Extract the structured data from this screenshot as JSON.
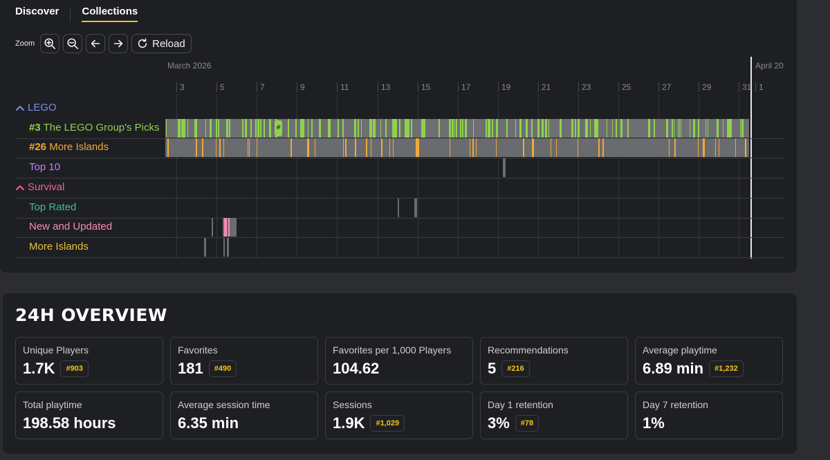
{
  "tabs": [
    {
      "label": "Discover",
      "active": false
    },
    {
      "label": "Collections",
      "active": true
    }
  ],
  "toolbar": {
    "zoom_label": "Zoom",
    "zoom_in_icon": "zoom-in-icon",
    "zoom_out_icon": "zoom-out-icon",
    "back_icon": "arrow-left-icon",
    "forward_icon": "arrow-right-icon",
    "reload_icon": "refresh-icon",
    "reload_label": "Reload"
  },
  "timeline": {
    "months": [
      "March 2026",
      "April 20"
    ],
    "days": [
      "3",
      "5",
      "7",
      "9",
      "11",
      "13",
      "15",
      "17",
      "19",
      "21",
      "23",
      "25",
      "27",
      "29",
      "31",
      "1"
    ],
    "rows": [
      {
        "type": "group",
        "label": "LEGO",
        "color": "#7e8cf0",
        "expanded": true
      },
      {
        "type": "item",
        "rank": "#3",
        "label": "The LEGO Group's Picks",
        "color": "#8fd14f"
      },
      {
        "type": "item",
        "rank": "#26",
        "label": "More Islands",
        "color": "#f0a93a"
      },
      {
        "type": "item",
        "rank": "",
        "label": "Top 10",
        "color": "#c77dff"
      },
      {
        "type": "group",
        "label": "Survival",
        "color": "#f06292",
        "expanded": true
      },
      {
        "type": "item",
        "rank": "",
        "label": "Top Rated",
        "color": "#3fbf8f"
      },
      {
        "type": "item",
        "rank": "",
        "label": "New and Updated",
        "color": "#f48fb1"
      },
      {
        "type": "item",
        "rank": "",
        "label": "More Islands",
        "color": "#e8c13a"
      }
    ],
    "tooltip_marker": "#"
  },
  "overview": {
    "title": "24H OVERVIEW",
    "stats": [
      {
        "label": "Unique Players",
        "value": "1.7K",
        "rank": "#903"
      },
      {
        "label": "Favorites",
        "value": "181",
        "rank": "#490"
      },
      {
        "label": "Favorites per 1,000 Players",
        "value": "104.62",
        "rank": ""
      },
      {
        "label": "Recommendations",
        "value": "5",
        "rank": "#216"
      },
      {
        "label": "Average playtime",
        "value": "6.89 min",
        "rank": "#1,232"
      },
      {
        "label": "Total playtime",
        "value": "198.58 hours",
        "rank": ""
      },
      {
        "label": "Average session time",
        "value": "6.35 min",
        "rank": ""
      },
      {
        "label": "Sessions",
        "value": "1.9K",
        "rank": "#1,029"
      },
      {
        "label": "Day 1 retention",
        "value": "3%",
        "rank": "#78"
      },
      {
        "label": "Day 7 retention",
        "value": "1%",
        "rank": ""
      }
    ]
  },
  "colors": {
    "accent": "#f5c518",
    "panel": "#1e1f22",
    "background": "#2c2d30",
    "track_gray": "#6b6c6f"
  }
}
